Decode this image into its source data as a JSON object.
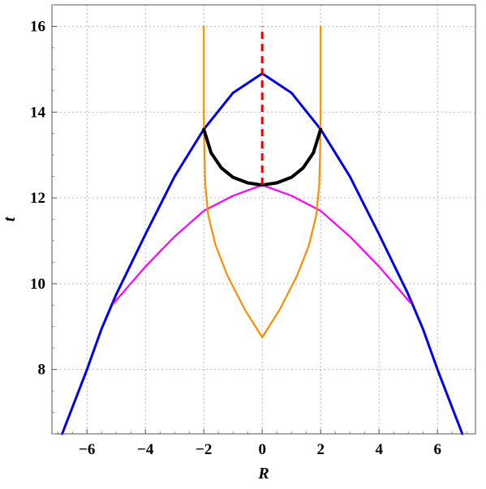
{
  "chart_data": {
    "type": "line",
    "xlabel": "R",
    "ylabel": "t",
    "xlim": [
      -7.2,
      7.3
    ],
    "ylim": [
      6.5,
      16.5
    ],
    "grid": true,
    "x_ticks": [
      -6,
      -4,
      -2,
      0,
      2,
      4,
      6
    ],
    "x_tick_labels": [
      "−6",
      "−4",
      "−2",
      "0",
      "2",
      "4",
      "6"
    ],
    "y_ticks": [
      8,
      10,
      12,
      14,
      16
    ],
    "y_tick_labels": [
      "8",
      "10",
      "12",
      "14",
      "16"
    ],
    "series": [
      {
        "color": "#0000ee",
        "style": "solid",
        "points": [
          [
            -6.85,
            6.5
          ],
          [
            -6,
            8.0
          ],
          [
            -5.5,
            8.95
          ],
          [
            -5,
            9.75
          ],
          [
            -4,
            11.15
          ],
          [
            -3,
            12.5
          ],
          [
            -2,
            13.6
          ],
          [
            -1,
            14.45
          ],
          [
            0,
            14.9
          ],
          [
            1,
            14.45
          ],
          [
            2,
            13.6
          ],
          [
            3,
            12.5
          ],
          [
            4,
            11.15
          ],
          [
            5,
            9.75
          ],
          [
            5.5,
            8.95
          ],
          [
            6,
            8.0
          ],
          [
            6.85,
            6.5
          ]
        ]
      },
      {
        "color": "#ff00ff",
        "style": "solid",
        "points": [
          [
            -5.08,
            9.55
          ],
          [
            -4,
            10.4
          ],
          [
            -3,
            11.1
          ],
          [
            -2,
            11.7
          ],
          [
            -1,
            12.05
          ],
          [
            0,
            12.3
          ],
          [
            1,
            12.05
          ],
          [
            2,
            11.7
          ],
          [
            3,
            11.1
          ],
          [
            4,
            10.4
          ],
          [
            5.08,
            9.55
          ]
        ]
      },
      {
        "color": "#ff8c00",
        "style": "solid",
        "points": [
          [
            -2.0,
            16.0
          ],
          [
            -2.0,
            14.0
          ],
          [
            -1.98,
            13.0
          ],
          [
            -1.95,
            12.3
          ],
          [
            -1.85,
            11.6
          ],
          [
            -1.6,
            10.9
          ],
          [
            -1.2,
            10.2
          ],
          [
            -0.6,
            9.4
          ],
          [
            0,
            8.75
          ],
          [
            0.6,
            9.4
          ],
          [
            1.2,
            10.2
          ],
          [
            1.6,
            10.9
          ],
          [
            1.85,
            11.6
          ],
          [
            1.95,
            12.3
          ],
          [
            1.98,
            13.0
          ],
          [
            2.0,
            14.0
          ],
          [
            2.0,
            16.0
          ]
        ]
      },
      {
        "color": "#000000",
        "style": "solid",
        "points": [
          [
            -2.0,
            13.6
          ],
          [
            -1.75,
            13.05
          ],
          [
            -1.4,
            12.7
          ],
          [
            -1.0,
            12.48
          ],
          [
            -0.5,
            12.35
          ],
          [
            0,
            12.3
          ],
          [
            0.5,
            12.35
          ],
          [
            1.0,
            12.48
          ],
          [
            1.4,
            12.7
          ],
          [
            1.75,
            13.05
          ],
          [
            2.0,
            13.6
          ]
        ]
      },
      {
        "color": "#e60000",
        "style": "dashed",
        "points": [
          [
            0,
            12.3
          ],
          [
            0,
            16.0
          ]
        ]
      }
    ]
  }
}
